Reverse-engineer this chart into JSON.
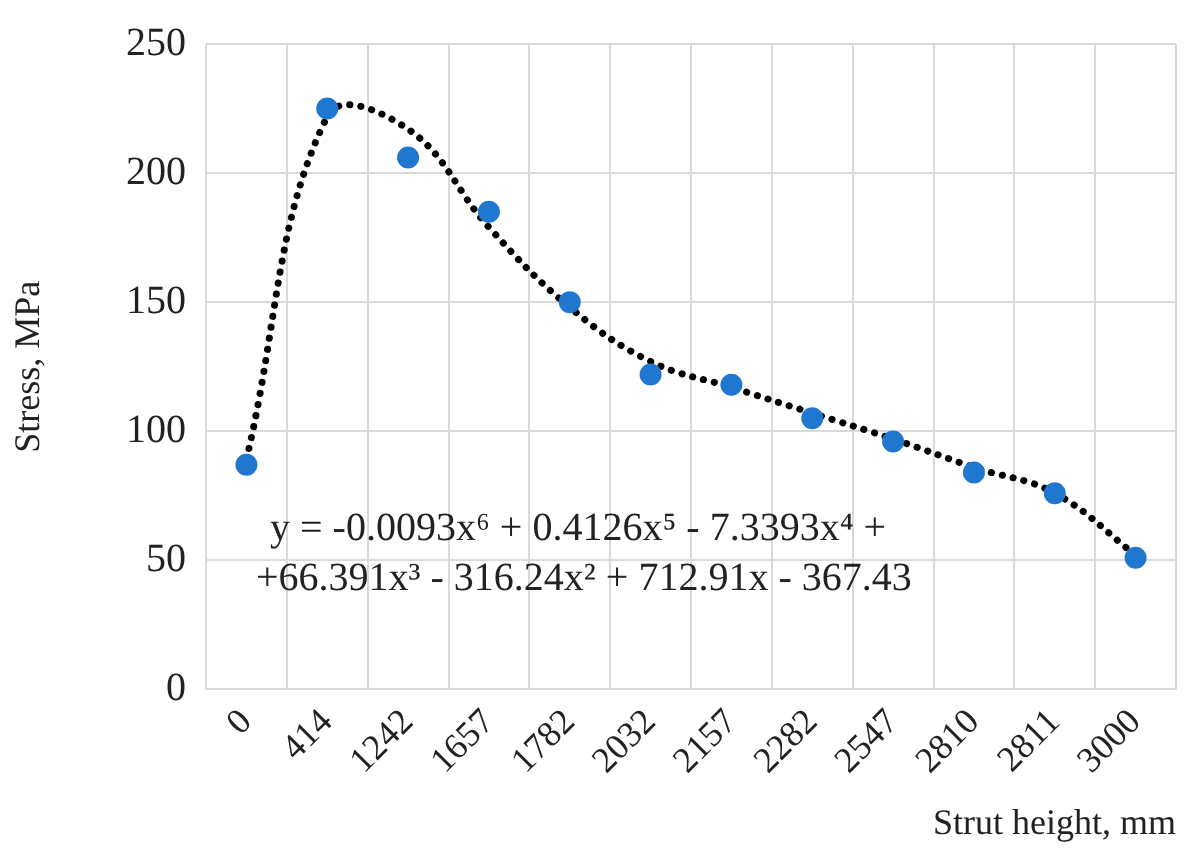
{
  "chart_data": {
    "type": "scatter",
    "xlabel": "Strut height, mm",
    "ylabel": "Stress, MPa",
    "categories": [
      "0",
      "414",
      "1242",
      "1657",
      "1782",
      "2032",
      "2157",
      "2282",
      "2547",
      "2810",
      "2811",
      "3000"
    ],
    "series": [
      {
        "color": "#1f77d0",
        "marker": "circle",
        "values": [
          87,
          225,
          206,
          185,
          150,
          122,
          118,
          105,
          96,
          84,
          76,
          51
        ]
      },
      {
        "type": "line",
        "color": "#000000",
        "marker": "none",
        "line_style": "dotted",
        "values": [
          89,
          222,
          217,
          179,
          148,
          127,
          117,
          107,
          97,
          86,
          76,
          52
        ]
      }
    ],
    "ylim": [
      0,
      250
    ],
    "yticks": [
      0,
      50,
      100,
      150,
      200,
      250
    ],
    "grid": true,
    "legend": false,
    "annotations": [
      "y = -0.0093x⁶ + 0.4126x⁵ - 7.3393x⁴ +",
      "+66.391x³ - 316.24x² + 712.91x - 367.43"
    ]
  }
}
